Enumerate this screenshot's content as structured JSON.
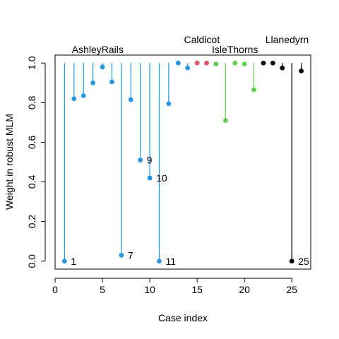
{
  "chart_data": {
    "type": "scatter",
    "xlabel": "Case index",
    "ylabel": "Weight in robust MLM",
    "xlim": [
      0,
      27
    ],
    "ylim": [
      -0.04,
      1.04
    ],
    "x_ticks": [
      0,
      5,
      10,
      15,
      20,
      25
    ],
    "y_ticks": [
      0.0,
      0.2,
      0.4,
      0.6,
      0.8,
      1.0
    ],
    "y_tick_labels": [
      "0.0",
      "0.2",
      "0.4",
      "0.6",
      "0.8",
      "1.0"
    ],
    "grid": false,
    "legend": "none",
    "colors": {
      "AshleyRails": "#2297E6",
      "Caldicot": "#DF536B",
      "IsleThorns": "#61D04F",
      "Llanedyrn": "#000000"
    },
    "groups": [
      {
        "name": "AshleyRails",
        "label_x": 4.5,
        "points": [
          {
            "x": 1,
            "y": 0.0
          },
          {
            "x": 2,
            "y": 0.82
          },
          {
            "x": 3,
            "y": 0.835
          },
          {
            "x": 4,
            "y": 0.9
          },
          {
            "x": 5,
            "y": 0.98
          },
          {
            "x": 6,
            "y": 0.905
          },
          {
            "x": 7,
            "y": 0.03
          },
          {
            "x": 8,
            "y": 0.815
          },
          {
            "x": 9,
            "y": 0.51
          },
          {
            "x": 10,
            "y": 0.42
          },
          {
            "x": 11,
            "y": 0.0
          },
          {
            "x": 12,
            "y": 0.795
          },
          {
            "x": 13,
            "y": 1.0
          },
          {
            "x": 14,
            "y": 0.975
          }
        ]
      },
      {
        "name": "Caldicot",
        "label_x": 15.5,
        "points": [
          {
            "x": 15,
            "y": 1.0
          },
          {
            "x": 16,
            "y": 1.0
          }
        ]
      },
      {
        "name": "IsleThorns",
        "label_x": 19,
        "points": [
          {
            "x": 17,
            "y": 0.995
          },
          {
            "x": 18,
            "y": 0.71
          },
          {
            "x": 19,
            "y": 1.0
          },
          {
            "x": 20,
            "y": 0.995
          },
          {
            "x": 21,
            "y": 0.865
          }
        ]
      },
      {
        "name": "Llanedyrn",
        "label_x": 24.5,
        "points": [
          {
            "x": 22,
            "y": 1.0
          },
          {
            "x": 23,
            "y": 1.0
          },
          {
            "x": 24,
            "y": 0.975
          },
          {
            "x": 25,
            "y": 0.0
          },
          {
            "x": 26,
            "y": 0.96
          }
        ]
      }
    ],
    "point_labels": [
      {
        "x": 1,
        "y": 0.0,
        "text": "1"
      },
      {
        "x": 7,
        "y": 0.03,
        "text": "7"
      },
      {
        "x": 9,
        "y": 0.51,
        "text": "9"
      },
      {
        "x": 10,
        "y": 0.42,
        "text": "10"
      },
      {
        "x": 11,
        "y": 0.0,
        "text": "11"
      },
      {
        "x": 25,
        "y": 0.0,
        "text": "25"
      }
    ]
  }
}
